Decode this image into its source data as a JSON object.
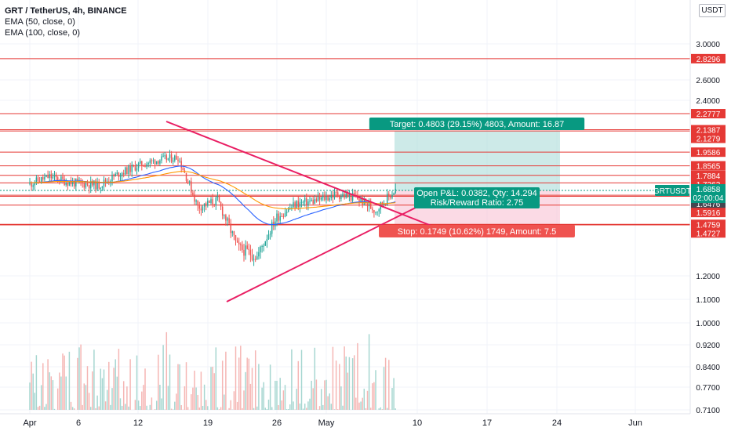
{
  "legend": {
    "symbol": "GRT / TetherUS, 4h, BINANCE",
    "ema50": "EMA (50, close, 0)",
    "ema100": "EMA (100, close, 0)"
  },
  "currency_button": "USDT",
  "colors": {
    "up": "#26a69a",
    "down": "#ef5350",
    "level_line": "#e53935",
    "trendline": "#e91e63",
    "ema50": "#2962ff",
    "ema100": "#ff9800",
    "target_zone": "#b2dfdb",
    "stop_zone": "#f8bbd0",
    "price_badge": "#089981"
  },
  "chart_data": {
    "type": "candlestick",
    "title": "GRT / TetherUS, 4h, BINANCE",
    "price_axis_ticks": [
      "3.0000",
      "2.6000",
      "2.4000",
      "1.2000",
      "1.1000",
      "1.0000",
      "0.9200",
      "0.8400",
      "0.7700",
      "0.7100"
    ],
    "time_axis_ticks": [
      "Apr",
      "6",
      "12",
      "19",
      "26",
      "May",
      "10",
      "17",
      "24",
      "Jun"
    ],
    "horizontal_levels": [
      2.8296,
      2.2777,
      2.1387,
      2.1279,
      1.9586,
      1.8565,
      1.7884,
      1.7362,
      1.6543,
      1.6476,
      1.5916,
      1.4759,
      1.4727
    ],
    "current_price": {
      "symbol": "GRTUSDT",
      "price": "1.6858",
      "countdown": "02:00:04"
    },
    "price_labels": [
      "2.8296",
      "2.2777",
      "2.1387",
      "2.1279",
      "1.9586",
      "1.8565",
      "1.7884",
      "1.7362",
      "1.6543",
      "1.6476",
      "1.5916",
      "1.4759",
      "1.4727"
    ],
    "indicators": [
      {
        "name": "EMA (50, close, 0)",
        "color": "#2962ff"
      },
      {
        "name": "EMA (100, close, 0)",
        "color": "#ff9800"
      }
    ],
    "approx_close_path": [
      {
        "date": "Apr 1",
        "close": 1.73
      },
      {
        "date": "Apr 3",
        "close": 1.78
      },
      {
        "date": "Apr 5",
        "close": 1.74
      },
      {
        "date": "Apr 8",
        "close": 1.72
      },
      {
        "date": "Apr 10",
        "close": 1.8
      },
      {
        "date": "Apr 12",
        "close": 1.86
      },
      {
        "date": "Apr 14",
        "close": 1.9
      },
      {
        "date": "Apr 16",
        "close": 1.92
      },
      {
        "date": "Apr 18",
        "close": 1.58
      },
      {
        "date": "Apr 20",
        "close": 1.62
      },
      {
        "date": "Apr 22",
        "close": 1.35
      },
      {
        "date": "Apr 24",
        "close": 1.3
      },
      {
        "date": "Apr 26",
        "close": 1.52
      },
      {
        "date": "Apr 28",
        "close": 1.6
      },
      {
        "date": "Apr 30",
        "close": 1.62
      },
      {
        "date": "May 2",
        "close": 1.66
      },
      {
        "date": "May 4",
        "close": 1.64
      },
      {
        "date": "May 6",
        "close": 1.56
      },
      {
        "date": "May 8",
        "close": 1.69
      }
    ],
    "position": {
      "target_label": "Target: 0.4803 (29.15%) 4803, Amount: 16.87",
      "open_pnl_label": "Open P&L: 0.0382, Qty: 14.294",
      "rr_label": "Risk/Reward Ratio: 2.75",
      "stop_label": "Stop: 0.1749 (10.62%) 1749, Amount: 7.5"
    },
    "volume": {
      "visible": true
    }
  }
}
